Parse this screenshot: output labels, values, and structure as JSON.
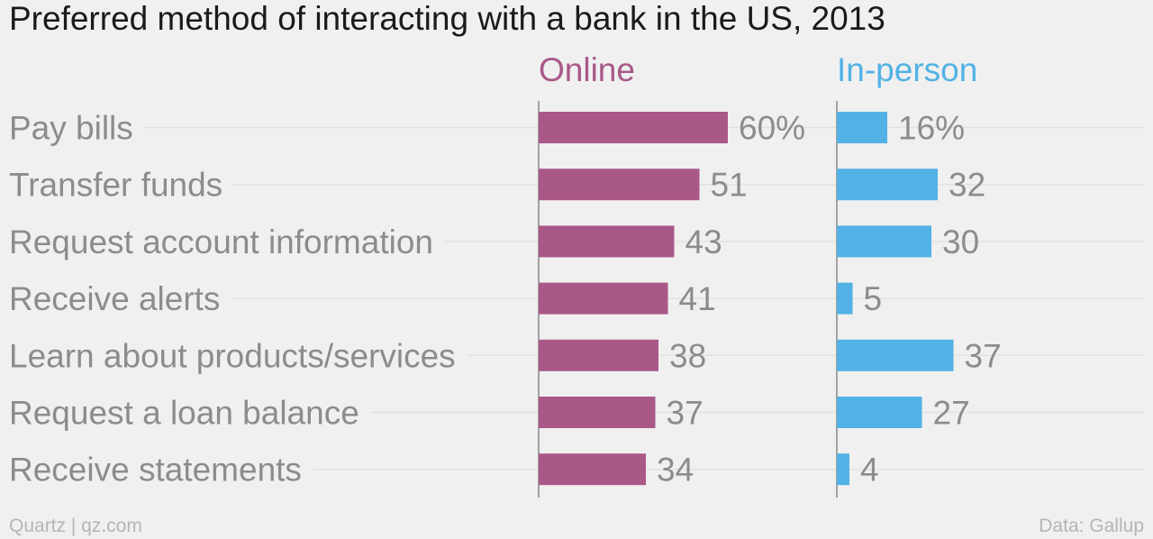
{
  "title": "Preferred method of interacting with a bank in the US, 2013",
  "footer": {
    "left": "Quartz | qz.com",
    "right": "Data: Gallup"
  },
  "colors": {
    "online": "#a95888",
    "in_person": "#52b2e5"
  },
  "chart_data": {
    "type": "bar",
    "orientation": "horizontal",
    "title": "Preferred method of interacting with a bank in the US, 2013",
    "categories": [
      "Pay bills",
      "Transfer funds",
      "Request account information",
      "Receive alerts",
      "Learn about products/services",
      "Request a loan balance",
      "Receive statements"
    ],
    "series": [
      {
        "name": "Online",
        "color": "#a95888",
        "values": [
          60,
          51,
          43,
          41,
          38,
          37,
          34
        ],
        "labels": [
          "60%",
          "51",
          "43",
          "41",
          "38",
          "37",
          "34"
        ]
      },
      {
        "name": "In-person",
        "color": "#52b2e5",
        "values": [
          16,
          32,
          30,
          5,
          37,
          27,
          4
        ],
        "labels": [
          "16%",
          "32",
          "30",
          "5",
          "37",
          "27",
          "4"
        ]
      }
    ],
    "unit": "%",
    "grid": true,
    "source": "Data: Gallup"
  }
}
